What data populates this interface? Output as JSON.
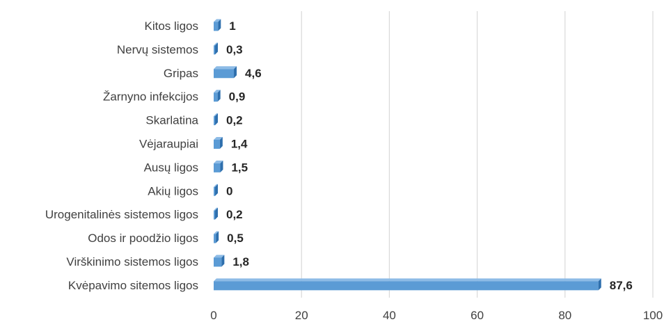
{
  "chart_data": {
    "type": "bar",
    "orientation": "horizontal",
    "categories": [
      "Kitos ligos",
      "Nervų sistemos",
      "Gripas",
      "Žarnyno infekcijos",
      "Skarlatina",
      "Vėjaraupiai",
      "Ausų ligos",
      "Akių ligos",
      "Urogenitalinės sistemos ligos",
      "Odos ir poodžio ligos",
      "Virškinimo sistemos ligos",
      "Kvėpavimo sitemos ligos"
    ],
    "values": [
      1,
      0.3,
      4.6,
      0.9,
      0.2,
      1.4,
      1.5,
      0,
      0.2,
      0.5,
      1.8,
      87.6
    ],
    "data_labels": [
      "1",
      "0,3",
      "4,6",
      "0,9",
      "0,2",
      "1,4",
      "1,5",
      "0",
      "0,2",
      "0,5",
      "1,8",
      "87,6"
    ],
    "x_ticks": [
      "0",
      "20",
      "40",
      "60",
      "80",
      "100"
    ],
    "xlim": [
      0,
      100
    ],
    "grid": true,
    "legend": "none",
    "colors": {
      "bar_face": "#5b9bd5",
      "bar_side": "#2e6fad",
      "bar_top": "#8dbbe6",
      "grid": "#d9d9d9",
      "text": "#404040"
    }
  }
}
